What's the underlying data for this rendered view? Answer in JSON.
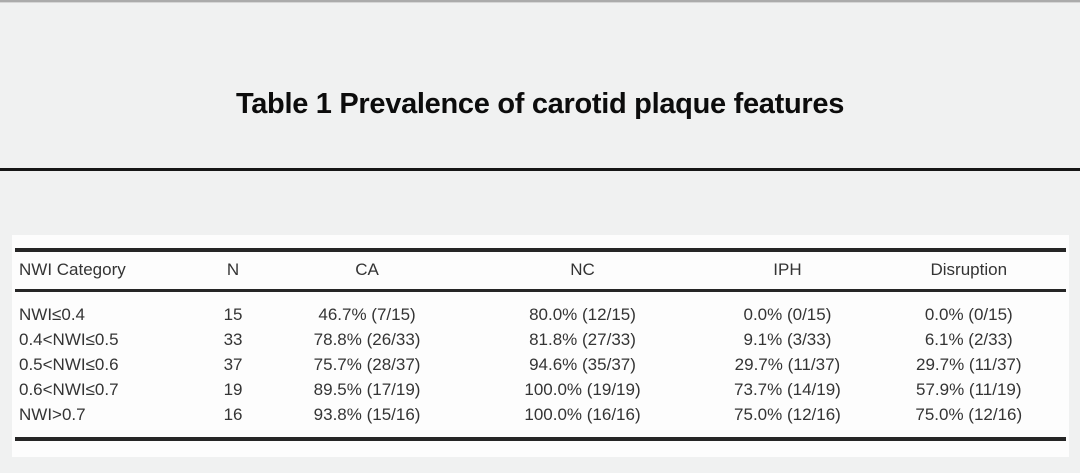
{
  "page": {
    "background_color": "#f0f1f1",
    "card_background_color": "#fdfdfd",
    "rule_color": "#161616",
    "table_border_color": "#262626"
  },
  "title": "Table 1 Prevalence of carotid plaque features",
  "table": {
    "columns": [
      "NWI Category",
      "N",
      "CA",
      "NC",
      "IPH",
      "Disruption"
    ],
    "rows": [
      [
        "NWI≤0.4",
        "15",
        "46.7% (7/15)",
        "80.0% (12/15)",
        "0.0% (0/15)",
        "0.0% (0/15)"
      ],
      [
        "0.4<NWI≤0.5",
        "33",
        "78.8% (26/33)",
        "81.8% (27/33)",
        "9.1% (3/33)",
        "6.1% (2/33)"
      ],
      [
        "0.5<NWI≤0.6",
        "37",
        "75.7% (28/37)",
        "94.6% (35/37)",
        "29.7% (11/37)",
        "29.7% (11/37)"
      ],
      [
        "0.6<NWI≤0.7",
        "19",
        "89.5% (17/19)",
        "100.0% (19/19)",
        "73.7% (14/19)",
        "57.9% (11/19)"
      ],
      [
        "NWI>0.7",
        "16",
        "93.8% (15/16)",
        "100.0% (16/16)",
        "75.0% (12/16)",
        "75.0% (12/16)"
      ]
    ]
  }
}
